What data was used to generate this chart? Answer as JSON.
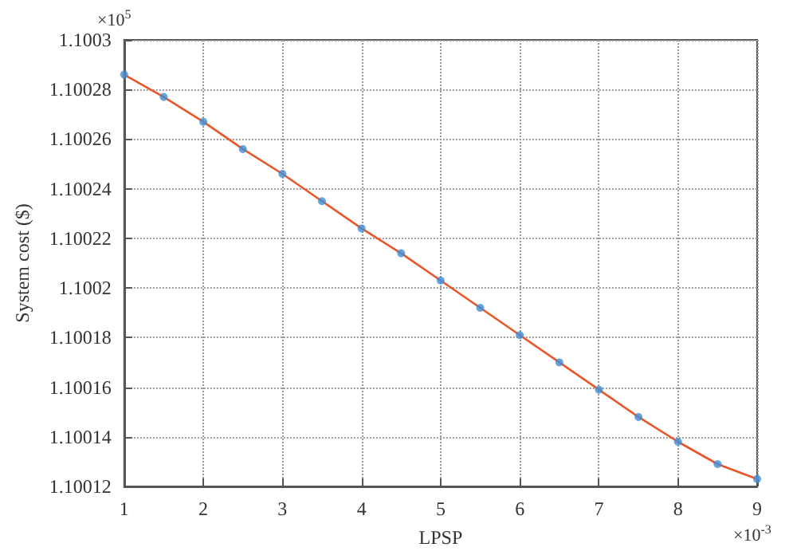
{
  "chart_data": {
    "type": "line",
    "xlabel": "LPSP",
    "ylabel": "System cost ($)",
    "annotations": [
      "×10$^{5}$",
      "×10$^{-3}$"
    ],
    "x": [
      1,
      1.5,
      2,
      2.5,
      3,
      3.5,
      4,
      4.5,
      5,
      5.5,
      6,
      6.5,
      7,
      7.5,
      8,
      8.5,
      9
    ],
    "series": [
      {
        "marker": "none",
        "color": "#e8562a",
        "values": [
          1.100286,
          1.100277,
          1.100267,
          1.100256,
          1.100246,
          1.100235,
          1.100224,
          1.100214,
          1.100203,
          1.100192,
          1.100181,
          1.10017,
          1.100159,
          1.100148,
          1.100138,
          1.100129,
          1.100123
        ]
      },
      {
        "type": "scatter",
        "marker": "circle",
        "color": "#3d8fd6",
        "values": [
          1.100286,
          1.100277,
          1.100267,
          1.100256,
          1.100246,
          1.100235,
          1.100224,
          1.100214,
          1.100203,
          1.100192,
          1.100181,
          1.10017,
          1.100159,
          1.100148,
          1.100138,
          1.100129,
          1.100123
        ]
      }
    ],
    "xlim": [
      1,
      9
    ],
    "xticks": [
      1,
      2,
      3,
      4,
      5,
      6,
      7,
      8,
      9
    ],
    "ylim": [
      1.10012,
      1.1003
    ],
    "yticks": [
      1.10012,
      1.10014,
      1.10016,
      1.10018,
      1.1002,
      1.10022,
      1.10024,
      1.10026,
      1.10028,
      1.1003
    ],
    "grid": true,
    "line_style": "solid"
  }
}
